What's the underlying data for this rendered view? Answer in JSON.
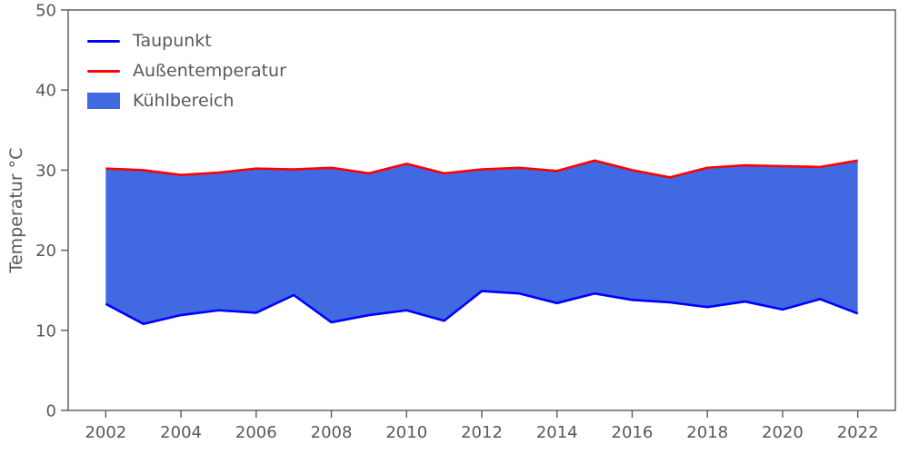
{
  "chart_data": {
    "type": "area",
    "title": "",
    "xlabel": "",
    "ylabel": "Temperatur °C",
    "x": [
      2002,
      2003,
      2004,
      2005,
      2006,
      2007,
      2008,
      2009,
      2010,
      2011,
      2012,
      2013,
      2014,
      2015,
      2016,
      2017,
      2018,
      2019,
      2020,
      2021,
      2022
    ],
    "series": [
      {
        "name": "Taupunkt",
        "color": "#0000ff",
        "values": [
          13.3,
          10.8,
          11.9,
          12.5,
          12.2,
          14.4,
          11.0,
          11.9,
          12.5,
          11.2,
          14.9,
          14.6,
          13.4,
          14.6,
          13.8,
          13.5,
          12.9,
          13.6,
          12.6,
          13.9,
          12.1
        ]
      },
      {
        "name": "Außentemperatur",
        "color": "#ff0000",
        "values": [
          30.2,
          30.0,
          29.4,
          29.7,
          30.2,
          30.1,
          30.3,
          29.6,
          30.8,
          29.6,
          30.1,
          30.3,
          29.9,
          31.2,
          30.0,
          29.1,
          30.3,
          30.6,
          30.5,
          30.4,
          31.2
        ]
      }
    ],
    "fill": {
      "name": "Kühlbereich",
      "color": "#4169e1"
    },
    "xlim": [
      2001,
      2023
    ],
    "ylim": [
      0,
      50
    ],
    "xticks": [
      2002,
      2004,
      2006,
      2008,
      2010,
      2012,
      2014,
      2016,
      2018,
      2020,
      2022
    ],
    "yticks": [
      0,
      10,
      20,
      30,
      40,
      50
    ],
    "grid": false,
    "legend_position": "upper-left",
    "text_color": "#595959",
    "axis_color": "#595959"
  }
}
